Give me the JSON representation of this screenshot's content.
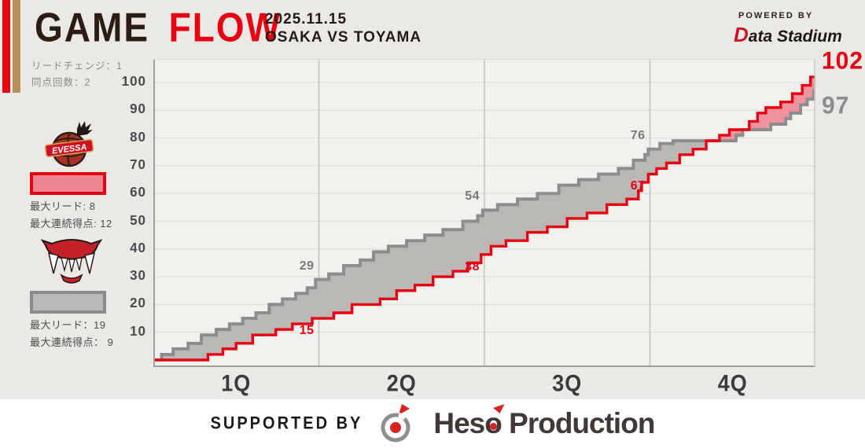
{
  "header": {
    "title_game": "GAME",
    "title_flow": "FLOW",
    "date": "2025.11.15",
    "matchup": "OSAKA VS TOYAMA",
    "powered_by": "POWERED BY",
    "powered_logo_initial": "D",
    "powered_logo_rest": "ata Stadium"
  },
  "sidebar": {
    "lead_changes": "リードチェンジ：1",
    "tie_count": "同点回数：2",
    "osaka": {
      "max_lead": "最大リード: 8",
      "max_run": "最大連続得点: 12"
    },
    "toyama": {
      "max_lead": "最大リード：19",
      "max_run": "最大連続得点： 9"
    }
  },
  "footer": {
    "supported_by": "SUPPORTED BY",
    "logo_hes": "Hes",
    "logo_o": "o",
    "logo_rest": " Production"
  },
  "colors": {
    "accent_red": "#e60012",
    "accent_gold": "#b7915a",
    "osaka_line": "#e60012",
    "osaka_fill": "#f0939e",
    "toyama_line": "#8d8d8d",
    "toyama_fill": "#bab8b5",
    "grid": "#e0deda",
    "quarter_line": "#c9c7c4",
    "plot_bg": "#f2f1ee"
  },
  "chart_data": {
    "type": "step-line",
    "title": "GAME FLOW  OSAKA VS TOYAMA  2025.11.15",
    "x_labels": [
      "1Q",
      "2Q",
      "3Q",
      "4Q"
    ],
    "x_range_minutes": [
      0,
      40
    ],
    "quarter_minutes": 10,
    "y_ticks": [
      10,
      20,
      30,
      40,
      50,
      60,
      70,
      80,
      90,
      100
    ],
    "y_range": [
      0,
      108
    ],
    "grid": true,
    "stats": {
      "lead_changes": 1,
      "tie_count": 2,
      "osaka_max_lead": 8,
      "osaka_max_run": 12,
      "toyama_max_lead": 19,
      "toyama_max_run": 9
    },
    "series": [
      {
        "name": "OSAKA",
        "color": "#e60012",
        "fill": "#f0939e",
        "quarter_end_scores": [
          15,
          38,
          67,
          102
        ],
        "final": 102,
        "points": [
          [
            0,
            0
          ],
          [
            3.3,
            2
          ],
          [
            4.2,
            4
          ],
          [
            5.0,
            6
          ],
          [
            6.0,
            9
          ],
          [
            7.4,
            11
          ],
          [
            8.4,
            13
          ],
          [
            9.6,
            15
          ],
          [
            10.9,
            17
          ],
          [
            12.0,
            20
          ],
          [
            13.7,
            22
          ],
          [
            14.7,
            25
          ],
          [
            15.8,
            27
          ],
          [
            16.9,
            30
          ],
          [
            18.1,
            32
          ],
          [
            19.0,
            35
          ],
          [
            19.8,
            38
          ],
          [
            20.4,
            41
          ],
          [
            21.3,
            43
          ],
          [
            22.6,
            46
          ],
          [
            23.8,
            48
          ],
          [
            25.0,
            51
          ],
          [
            26.2,
            53
          ],
          [
            27.4,
            56
          ],
          [
            28.6,
            58
          ],
          [
            29.3,
            61
          ],
          [
            29.5,
            64
          ],
          [
            29.9,
            67
          ],
          [
            30.4,
            69
          ],
          [
            31.0,
            71
          ],
          [
            31.8,
            74
          ],
          [
            32.6,
            76
          ],
          [
            33.4,
            79
          ],
          [
            34.2,
            81
          ],
          [
            34.8,
            83
          ],
          [
            36.0,
            86
          ],
          [
            36.5,
            89
          ],
          [
            37.0,
            91
          ],
          [
            37.9,
            93
          ],
          [
            38.6,
            96
          ],
          [
            39.2,
            99
          ],
          [
            39.7,
            102
          ],
          [
            40,
            102
          ]
        ]
      },
      {
        "name": "TOYAMA",
        "color": "#8d8d8d",
        "fill": "#bab8b5",
        "quarter_end_scores": [
          29,
          54,
          76,
          97
        ],
        "final": 97,
        "points": [
          [
            0,
            0
          ],
          [
            0.5,
            2
          ],
          [
            1.2,
            4
          ],
          [
            2.1,
            6
          ],
          [
            2.9,
            9
          ],
          [
            3.8,
            11
          ],
          [
            4.6,
            13
          ],
          [
            5.4,
            15
          ],
          [
            6.2,
            17
          ],
          [
            7.0,
            20
          ],
          [
            7.8,
            22
          ],
          [
            8.6,
            24
          ],
          [
            9.3,
            26
          ],
          [
            9.8,
            29
          ],
          [
            10.6,
            31
          ],
          [
            11.5,
            34
          ],
          [
            12.5,
            36
          ],
          [
            13.3,
            39
          ],
          [
            14.2,
            41
          ],
          [
            15.3,
            43
          ],
          [
            16.4,
            45
          ],
          [
            17.5,
            47
          ],
          [
            18.7,
            50
          ],
          [
            19.6,
            52
          ],
          [
            19.9,
            54
          ],
          [
            20.8,
            56
          ],
          [
            22.0,
            58
          ],
          [
            23.2,
            60
          ],
          [
            24.5,
            63
          ],
          [
            25.7,
            65
          ],
          [
            26.9,
            67
          ],
          [
            28.1,
            69
          ],
          [
            29.0,
            72
          ],
          [
            29.7,
            74
          ],
          [
            29.9,
            76
          ],
          [
            30.6,
            78
          ],
          [
            31.4,
            79
          ],
          [
            35.2,
            81
          ],
          [
            35.6,
            83
          ],
          [
            37.3,
            85
          ],
          [
            38.2,
            87
          ],
          [
            38.5,
            89
          ],
          [
            39.1,
            92
          ],
          [
            39.5,
            94
          ],
          [
            39.9,
            97
          ],
          [
            40,
            97
          ]
        ]
      }
    ],
    "quarter_annotations": [
      {
        "quarter": 1,
        "team": "TOYAMA",
        "value": 29
      },
      {
        "quarter": 1,
        "team": "OSAKA",
        "value": 15
      },
      {
        "quarter": 2,
        "team": "TOYAMA",
        "value": 54
      },
      {
        "quarter": 2,
        "team": "OSAKA",
        "value": 38
      },
      {
        "quarter": 3,
        "team": "TOYAMA",
        "value": 76
      },
      {
        "quarter": 3,
        "team": "OSAKA",
        "value": 67
      }
    ],
    "final_annotations": [
      {
        "team": "OSAKA",
        "value": 102
      },
      {
        "team": "TOYAMA",
        "value": 97
      }
    ]
  }
}
